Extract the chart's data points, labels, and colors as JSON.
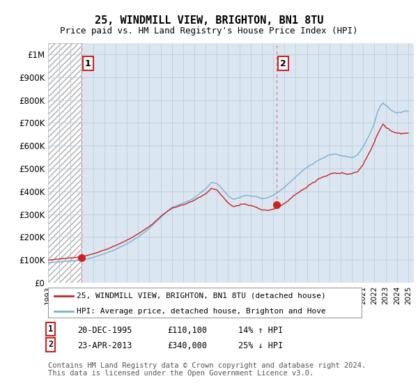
{
  "title": "25, WINDMILL VIEW, BRIGHTON, BN1 8TU",
  "subtitle": "Price paid vs. HM Land Registry's House Price Index (HPI)",
  "ylim": [
    0,
    1050000
  ],
  "yticks": [
    0,
    100000,
    200000,
    300000,
    400000,
    500000,
    600000,
    700000,
    800000,
    900000,
    1000000
  ],
  "ytick_labels": [
    "£0",
    "£100K",
    "£200K",
    "£300K",
    "£400K",
    "£500K",
    "£600K",
    "£700K",
    "£800K",
    "£900K",
    "£1M"
  ],
  "hpi_color": "#7bafd4",
  "price_color": "#cc2222",
  "dot_color": "#cc2222",
  "vline_color": "#e08080",
  "bg_color": "#dce6f1",
  "hatch_bg_color": "#ffffff",
  "grid_color": "#b8cfe0",
  "sale1_x": 1995.97,
  "sale1_y": 110100,
  "sale2_x": 2013.31,
  "sale2_y": 340000,
  "xlim_left": 1993.0,
  "xlim_right": 2025.5,
  "legend_price_label": "25, WINDMILL VIEW, BRIGHTON, BN1 8TU (detached house)",
  "legend_hpi_label": "HPI: Average price, detached house, Brighton and Hove",
  "note1_label": "1",
  "note1_date": "20-DEC-1995",
  "note1_price": "£110,100",
  "note1_hpi": "14% ↑ HPI",
  "note2_label": "2",
  "note2_date": "23-APR-2013",
  "note2_price": "£340,000",
  "note2_hpi": "25% ↓ HPI",
  "footer": "Contains HM Land Registry data © Crown copyright and database right 2024.\nThis data is licensed under the Open Government Licence v3.0."
}
